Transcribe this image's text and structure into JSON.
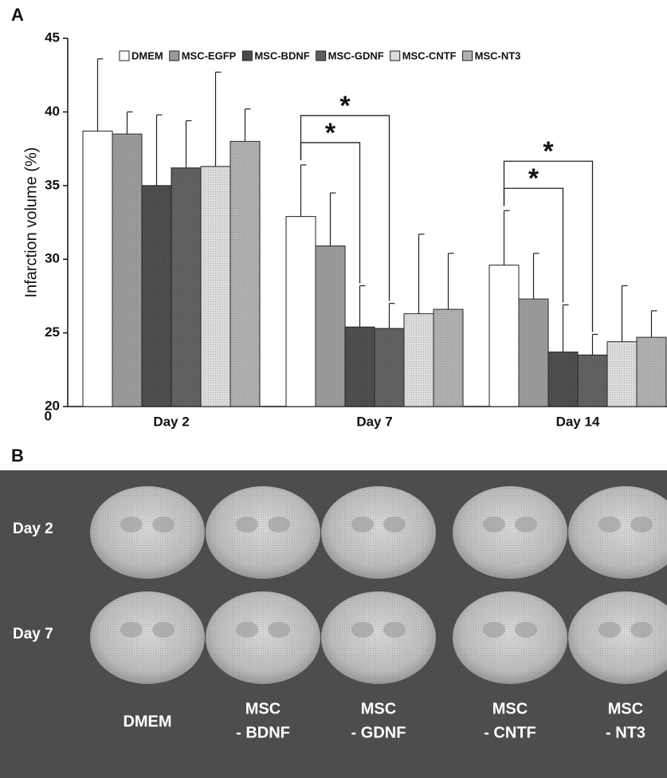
{
  "panel_a_label": "A",
  "chart_data": {
    "type": "bar",
    "y_label": "Infarction volume (%)",
    "axis_break_label": "0",
    "categories": [
      "Day 2",
      "Day 7",
      "Day 14"
    ],
    "series": [
      {
        "name": "DMEM",
        "color": "#ffffff",
        "values": [
          38.7,
          32.9,
          29.6
        ],
        "errors": [
          4.9,
          3.5,
          3.7
        ]
      },
      {
        "name": "MSC-EGFP",
        "color": "#9a9a9a",
        "values": [
          38.5,
          30.9,
          27.3
        ],
        "errors": [
          1.5,
          3.6,
          3.1
        ]
      },
      {
        "name": "MSC-BDNF",
        "color": "#4a4a4a",
        "values": [
          35.0,
          25.4,
          23.7
        ],
        "errors": [
          4.8,
          2.8,
          3.2
        ]
      },
      {
        "name": "MSC-GDNF",
        "color": "#5e5e5e",
        "values": [
          36.2,
          25.3,
          23.5
        ],
        "errors": [
          3.2,
          1.7,
          1.4
        ]
      },
      {
        "name": "MSC-CNTF",
        "color": "#dcdcdc",
        "values": [
          36.3,
          26.3,
          24.4
        ],
        "errors": [
          6.4,
          5.4,
          3.8
        ]
      },
      {
        "name": "MSC-NT3",
        "color": "#b0b0b0",
        "values": [
          38.0,
          26.6,
          24.7
        ],
        "errors": [
          2.2,
          3.8,
          1.8
        ]
      }
    ],
    "ylim": [
      20,
      45
    ],
    "yticks": [
      20,
      25,
      30,
      35,
      40,
      45
    ],
    "annotations": [
      {
        "text": "*",
        "category": 1,
        "series": [
          0,
          3
        ]
      },
      {
        "text": "*",
        "category": 1,
        "series": [
          0,
          2
        ]
      },
      {
        "text": "*",
        "category": 2,
        "series": [
          0,
          3
        ]
      },
      {
        "text": "*",
        "category": 2,
        "series": [
          0,
          2
        ]
      }
    ]
  },
  "panel_b": {
    "label": "B",
    "row_labels": [
      "Day 2",
      "Day 7"
    ],
    "column_labels": [
      [
        "DMEM"
      ],
      [
        "MSC",
        "- BDNF"
      ],
      [
        "MSC",
        "- GDNF"
      ],
      [
        "MSC",
        "- CNTF"
      ],
      [
        "MSC",
        "- NT3"
      ]
    ]
  }
}
